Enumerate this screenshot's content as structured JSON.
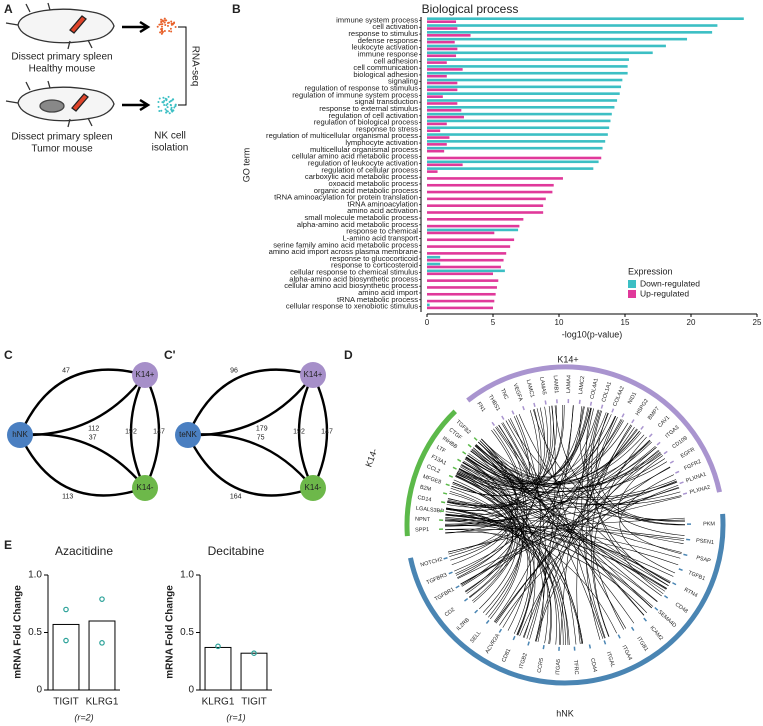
{
  "figure": {
    "panel_labels": {
      "a": "A",
      "b": "B",
      "c": "C",
      "c2": "C'",
      "d": "D",
      "e": "E"
    },
    "schematic": {
      "healthy_1": "Dissect primary spleen",
      "healthy_2": "Healthy mouse",
      "tumor_1": "Dissect primary spleen",
      "tumor_2": "Tumor mouse",
      "method": "RNA-seq",
      "isolation_1": "NK cell",
      "isolation_2": "isolation"
    },
    "networks": [
      {
        "nodes": [
          "hNK",
          "K14+",
          "K14-"
        ],
        "node_colors": [
          "#4a7fc1",
          "#a68fc9",
          "#6db84a"
        ],
        "edges": [
          {
            "from": 0,
            "to": 1,
            "label": 47
          },
          {
            "from": 0,
            "to": 1,
            "label": 112
          },
          {
            "from": 0,
            "to": 2,
            "label": 37
          },
          {
            "from": 0,
            "to": 2,
            "label": 113
          },
          {
            "from": 1,
            "to": 2,
            "label": 147
          },
          {
            "from": 1,
            "to": 2,
            "label": 192
          }
        ]
      },
      {
        "nodes": [
          "teNK",
          "K14+",
          "K14-"
        ],
        "node_colors": [
          "#4a7fc1",
          "#a68fc9",
          "#6db84a"
        ],
        "edges": [
          {
            "from": 0,
            "to": 1,
            "label": 96
          },
          {
            "from": 0,
            "to": 1,
            "label": 179
          },
          {
            "from": 0,
            "to": 2,
            "label": 75
          },
          {
            "from": 0,
            "to": 2,
            "label": 164
          },
          {
            "from": 1,
            "to": 2,
            "label": 147
          },
          {
            "from": 1,
            "to": 2,
            "label": 192
          }
        ]
      }
    ],
    "chord": {
      "groups": [
        {
          "name": "K14+",
          "color": "#a994cf",
          "genes": [
            "FN1",
            "THBS1",
            "TNC",
            "VEGFA",
            "LAMC1",
            "LAMA5",
            "LAMB1",
            "LAMA4",
            "LAMC2",
            "COL4A1",
            "COL1A1",
            "COL4A2",
            "NID1",
            "HSPG2",
            "BMP7",
            "CAV1",
            "ITGA3",
            "CD109",
            "EGFR",
            "FGFR2",
            "PLXNA1",
            "PLXNA2"
          ]
        },
        {
          "name": "hNK",
          "color": "#4a85b3",
          "genes": [
            "PKM",
            "PSEN1",
            "PSAP",
            "TGFB1",
            "RTN4",
            "CD48",
            "SEMA4D",
            "ICAM2",
            "ITGB1",
            "ITGA4",
            "ITGAL",
            "CD44",
            "TFRC",
            "ITGA5",
            "CCR5",
            "ITGB2",
            "CD81",
            "ACVR2A",
            "SELL",
            "IL2RB",
            "CD2",
            "TGFBR1",
            "TGFBR3",
            "NOTCH2"
          ]
        },
        {
          "name": "K14-",
          "color": "#5cb94a",
          "genes": [
            "SPP1",
            "NPNT",
            "LGALS3BP",
            "CD14",
            "B2M",
            "MFGE8",
            "CCL2",
            "F13A1",
            "LTF",
            "INHBB",
            "CTGF",
            "TGFB2"
          ]
        }
      ]
    }
  },
  "chart_data": [
    {
      "type": "hbar",
      "title": "Biological process",
      "x_label": "-log10(p-value)",
      "y_label": "GO term",
      "categories": [
        "immune system process",
        "cell activation",
        "response to stimulus",
        "defense response",
        "leukocyte activation",
        "immune response",
        "cell adhesion",
        "cell communication",
        "biological adhesion",
        "signaling",
        "regulation of response to stimulus",
        "regulation of immune system process",
        "signal transduction",
        "response to external stimulus",
        "regulation of cell activation",
        "regulation of biological process",
        "response to stress",
        "regulation of multicellular organismal process",
        "lymphocyte activation",
        "multicellular organismal process",
        "cellular amino acid metabolic process",
        "regulation of leukocyte activation",
        "regulation of cellular process",
        "carboxylic acid metabolic process",
        "oxoacid metabolic process",
        "organic acid metabolic process",
        "tRNA aminoacylation for protein translation",
        "tRNA aminoacylation",
        "amino acid activation",
        "small molecule metabolic process",
        "alpha-amino acid metabolic process",
        "response to chemical",
        "L-amino acid transport",
        "serine family amino acid metabolic process",
        "amino acid import across plasma membrane",
        "response to glucocorticoid",
        "response to corticosteroid",
        "cellular response to chemical stimulus",
        "alpha-amino acid biosynthetic process",
        "cellular amino acid biosynthetic process",
        "amino acid import",
        "tRNA metabolic process",
        "cellular response to xenobiotic stimulus"
      ],
      "series": [
        {
          "name": "Down-regulated",
          "color": "#3cbfc4",
          "values": [
            24,
            22,
            21.6,
            19.7,
            18.1,
            17.1,
            15.3,
            15.2,
            15.2,
            14.8,
            14.7,
            14.6,
            14.4,
            14.2,
            14.0,
            13.9,
            13.8,
            13.7,
            13.5,
            13.3,
            null,
            13.0,
            12.6,
            null,
            null,
            null,
            null,
            null,
            null,
            null,
            null,
            6.9,
            null,
            null,
            null,
            1.0,
            1.0,
            5.9,
            null,
            null,
            null,
            null,
            0.2
          ]
        },
        {
          "name": "Up-regulated",
          "color": "#e0399a",
          "values": [
            2.2,
            2.3,
            3.3,
            2.1,
            2.3,
            2.2,
            1.5,
            2.7,
            1.5,
            2.3,
            2.3,
            1.2,
            2.3,
            2.6,
            2.8,
            1.5,
            1.0,
            1.7,
            1.5,
            1.3,
            13.2,
            2.7,
            0.8,
            10.3,
            9.6,
            9.5,
            9.0,
            8.8,
            8.8,
            7.3,
            7.0,
            5.1,
            6.6,
            6.3,
            6.0,
            5.8,
            5.6,
            5.0,
            5.4,
            5.3,
            5.2,
            5.1,
            5.0
          ]
        }
      ],
      "xlim": [
        0,
        25
      ],
      "xticks": [
        0,
        5,
        10,
        15,
        20,
        25
      ],
      "legend_title": "Expression",
      "legend": "bottom-right"
    },
    {
      "type": "bar",
      "title": "Azacitidine",
      "y_label": "mRNA Fold Change",
      "note": "(r=2)",
      "categories": [
        "TIGIT",
        "KLRG1"
      ],
      "values": [
        0.57,
        0.6
      ],
      "points": [
        [
          0.7,
          0.43
        ],
        [
          0.79,
          0.41
        ]
      ],
      "point_color": "#2aa198",
      "ylim": [
        0,
        1
      ],
      "yticks": [
        0,
        0.5,
        {
          "value": 1,
          "label": "1.0"
        }
      ]
    },
    {
      "type": "bar",
      "title": "Decitabine",
      "y_label": "mRNA Fold Change",
      "note": "(r=1)",
      "categories": [
        "KLRG1",
        "TIGIT"
      ],
      "values": [
        0.37,
        0.32
      ],
      "points": [
        [
          0.38
        ],
        [
          0.32
        ]
      ],
      "point_color": "#2aa198",
      "ylim": [
        0,
        1
      ],
      "yticks": [
        0,
        0.5,
        {
          "value": 1,
          "label": "1.0"
        }
      ]
    }
  ]
}
